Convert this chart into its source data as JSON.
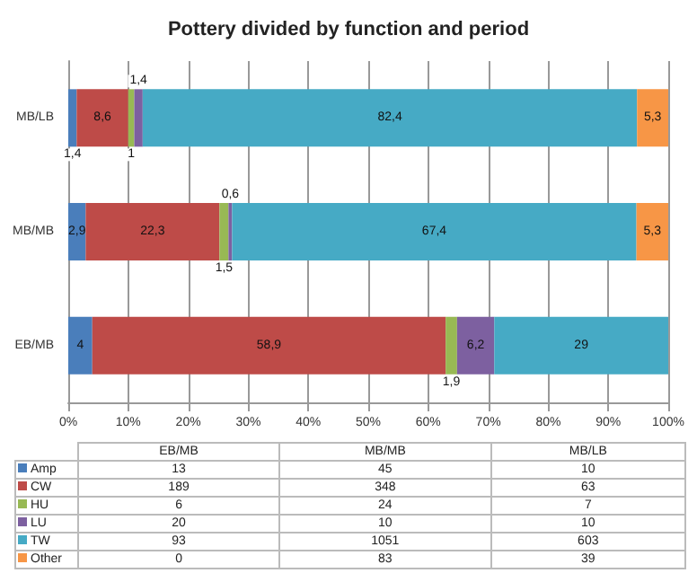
{
  "chart_data": {
    "type": "bar",
    "title": "Pottery divided by function and period",
    "orientation": "horizontal",
    "stacked": true,
    "categories": [
      "MB/LB",
      "MB/MB",
      "EB/MB"
    ],
    "series": [
      {
        "name": "Amp",
        "color": "#4a7ebb",
        "values": [
          1.4,
          2.9,
          4
        ],
        "value_labels": [
          "1,4",
          "2,9",
          "4"
        ]
      },
      {
        "name": "CW",
        "color": "#be4b48",
        "values": [
          8.6,
          22.3,
          58.9
        ],
        "value_labels": [
          "8,6",
          "22,3",
          "58,9"
        ]
      },
      {
        "name": "HU",
        "color": "#98b954",
        "values": [
          1,
          1.5,
          1.9
        ],
        "value_labels": [
          "1",
          "1,5",
          "1,9"
        ]
      },
      {
        "name": "LU",
        "color": "#7d60a0",
        "values": [
          1.4,
          0.6,
          6.2
        ],
        "value_labels": [
          "1,4",
          "0,6",
          "6,2"
        ]
      },
      {
        "name": "TW",
        "color": "#46aac5",
        "values": [
          82.4,
          67.4,
          29
        ],
        "value_labels": [
          "82,4",
          "67,4",
          "29"
        ]
      },
      {
        "name": "Other",
        "color": "#f79646",
        "values": [
          5.3,
          5.3,
          0
        ],
        "value_labels": [
          "5,3",
          "5,3",
          null
        ]
      }
    ],
    "xlim": [
      0,
      100
    ],
    "xticks": [
      {
        "value": 0,
        "label": "0%"
      },
      {
        "value": 10,
        "label": "10%"
      },
      {
        "value": 20,
        "label": "20%"
      },
      {
        "value": 30,
        "label": "30%"
      },
      {
        "value": 40,
        "label": "40%"
      },
      {
        "value": 50,
        "label": "50%"
      },
      {
        "value": 60,
        "label": "60%"
      },
      {
        "value": 70,
        "label": "70%"
      },
      {
        "value": 80,
        "label": "80%"
      },
      {
        "value": 90,
        "label": "90%"
      },
      {
        "value": 100,
        "label": "100%"
      }
    ],
    "grid": "x",
    "legend": "bottom",
    "annotations": [
      "13",
      "45",
      "10",
      "189",
      "348",
      "63",
      "6",
      "24",
      "7",
      "20",
      "10",
      "10",
      "93",
      "1051",
      "603",
      "0",
      "83",
      "39"
    ]
  }
}
